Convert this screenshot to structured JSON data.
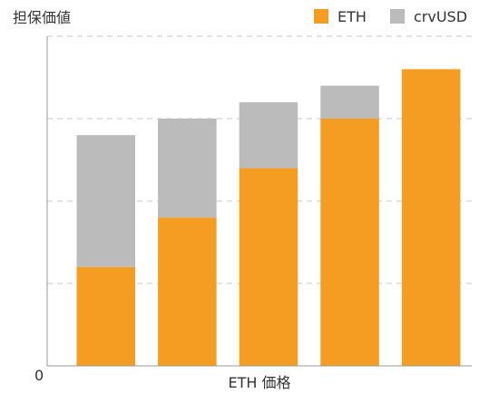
{
  "chart_data": {
    "type": "bar",
    "stacked": true,
    "title": "",
    "ylabel": "担保価値",
    "xlabel": "ETH 価格",
    "categories": [
      "",
      "",
      "",
      "",
      ""
    ],
    "series": [
      {
        "name": "ETH",
        "color": "#F49D22",
        "values": [
          30,
          45,
          60,
          75,
          90
        ]
      },
      {
        "name": "crvUSD",
        "color": "#BBBBBB",
        "values": [
          40,
          30,
          20,
          10,
          0
        ]
      }
    ],
    "ylim": [
      0,
      100
    ],
    "y_tick_labels": [
      "0"
    ],
    "grid": true,
    "legend_position": "top-right"
  }
}
